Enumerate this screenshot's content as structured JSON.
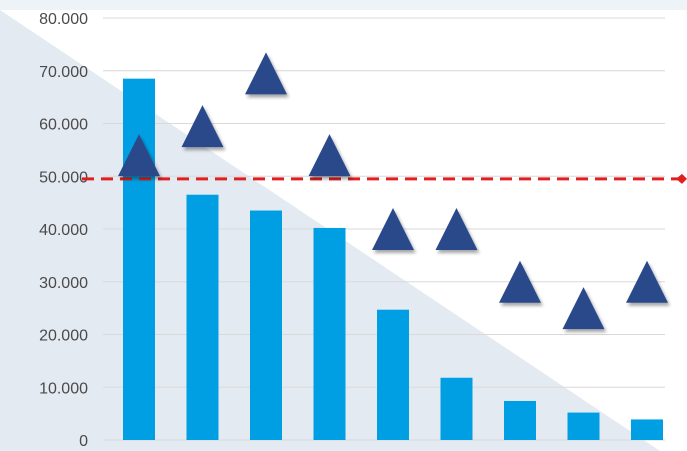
{
  "chart_data": {
    "type": "bar",
    "title": "",
    "xlabel": "",
    "ylabel": "",
    "ylim": [
      0,
      80000
    ],
    "yticks": [
      "0",
      "10.000",
      "20.000",
      "30.000",
      "40.000",
      "50.000",
      "60.000",
      "70.000",
      "80.000"
    ],
    "grid": true,
    "legend": "none",
    "categories": [
      "",
      "",
      "",
      "",
      "",
      "",
      "",
      "",
      ""
    ],
    "series": [
      {
        "type": "bar",
        "color": "#009fe3",
        "values": [
          68500,
          46500,
          43500,
          40200,
          24700,
          11800,
          7400,
          5200,
          3900
        ]
      },
      {
        "type": "scatter",
        "marker": "triangle",
        "color": "#2a4a8a",
        "values": [
          54000,
          59500,
          69500,
          54000,
          40000,
          40000,
          30000,
          25000,
          30000
        ]
      }
    ],
    "reference_line": {
      "value": 49500,
      "color": "#e02020",
      "style": "dashed"
    }
  },
  "colors": {
    "background_band": "#eef3f8",
    "background_triangle": "#e4eaf2",
    "grid": "#d9d9d9"
  }
}
